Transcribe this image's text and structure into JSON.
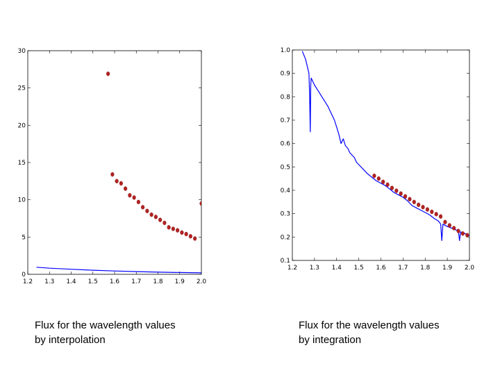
{
  "captions": {
    "left_line1": "Flux for the wavelength values",
    "left_line2": "by interpolation",
    "right_line1": "Flux for the wavelength values",
    "right_line2": "by integration"
  },
  "colors": {
    "point": "#b22222",
    "line": "#0000ff",
    "frame": "#000000",
    "background": "#ffffff"
  },
  "chart_data": [
    {
      "type": "scatter",
      "title": "",
      "xlabel": "",
      "ylabel": "",
      "xlim": [
        1.2,
        2.0
      ],
      "ylim": [
        0,
        30
      ],
      "grid": false,
      "xticks": [
        1.2,
        1.3,
        1.4,
        1.5,
        1.6,
        1.7,
        1.8,
        1.9,
        2.0
      ],
      "yticks": [
        0,
        5,
        10,
        15,
        20,
        25,
        30
      ],
      "series": [
        {
          "kind": "points",
          "x": [
            1.57,
            1.59,
            1.61,
            1.63,
            1.65,
            1.67,
            1.69,
            1.71,
            1.73,
            1.75,
            1.77,
            1.79,
            1.81,
            1.83,
            1.85,
            1.87,
            1.89,
            1.91,
            1.93,
            1.95,
            1.97,
            2.0
          ],
          "y": [
            26.9,
            13.4,
            12.5,
            12.2,
            11.5,
            10.6,
            10.3,
            9.7,
            9.0,
            8.5,
            8.0,
            7.7,
            7.3,
            6.9,
            6.3,
            6.1,
            5.9,
            5.6,
            5.4,
            5.1,
            4.8,
            9.5
          ]
        },
        {
          "kind": "line",
          "x": [
            1.24,
            1.3,
            1.4,
            1.5,
            1.6,
            1.7,
            1.8,
            1.9,
            2.0
          ],
          "y": [
            0.95,
            0.82,
            0.68,
            0.55,
            0.45,
            0.36,
            0.29,
            0.24,
            0.2
          ]
        }
      ]
    },
    {
      "type": "scatter",
      "title": "",
      "xlabel": "",
      "ylabel": "",
      "xlim": [
        1.2,
        2.0
      ],
      "ylim": [
        0.1,
        1.0
      ],
      "grid": false,
      "xticks": [
        1.2,
        1.3,
        1.4,
        1.5,
        1.6,
        1.7,
        1.8,
        1.9,
        2.0
      ],
      "yticks": [
        0.1,
        0.2,
        0.3,
        0.4,
        0.5,
        0.6,
        0.7,
        0.8,
        0.9,
        1.0
      ],
      "series": [
        {
          "kind": "line",
          "x": [
            1.245,
            1.26,
            1.275,
            1.278,
            1.281,
            1.283,
            1.285,
            1.29,
            1.3,
            1.32,
            1.34,
            1.36,
            1.38,
            1.39,
            1.4,
            1.41,
            1.42,
            1.43,
            1.44,
            1.45,
            1.46,
            1.47,
            1.48,
            1.49,
            1.5,
            1.52,
            1.54,
            1.56,
            1.58,
            1.6,
            1.62,
            1.64,
            1.66,
            1.68,
            1.7,
            1.72,
            1.74,
            1.76,
            1.78,
            1.8,
            1.82,
            1.84,
            1.86,
            1.87,
            1.875,
            1.88,
            1.9,
            1.92,
            1.94,
            1.95,
            1.955,
            1.96,
            1.98,
            2.0
          ],
          "y": [
            0.995,
            0.96,
            0.9,
            0.8,
            0.65,
            0.85,
            0.88,
            0.87,
            0.85,
            0.82,
            0.79,
            0.76,
            0.72,
            0.7,
            0.67,
            0.64,
            0.6,
            0.62,
            0.59,
            0.58,
            0.56,
            0.55,
            0.54,
            0.52,
            0.51,
            0.49,
            0.47,
            0.455,
            0.44,
            0.43,
            0.42,
            0.405,
            0.39,
            0.38,
            0.37,
            0.355,
            0.335,
            0.325,
            0.315,
            0.305,
            0.295,
            0.28,
            0.268,
            0.255,
            0.185,
            0.255,
            0.245,
            0.238,
            0.23,
            0.225,
            0.185,
            0.222,
            0.215,
            0.205
          ]
        },
        {
          "kind": "points",
          "x": [
            1.57,
            1.59,
            1.61,
            1.63,
            1.65,
            1.67,
            1.69,
            1.71,
            1.73,
            1.75,
            1.77,
            1.79,
            1.81,
            1.83,
            1.85,
            1.87,
            1.89,
            1.91,
            1.93,
            1.95,
            1.97,
            1.99
          ],
          "y": [
            0.462,
            0.45,
            0.436,
            0.424,
            0.41,
            0.398,
            0.386,
            0.374,
            0.362,
            0.35,
            0.338,
            0.328,
            0.318,
            0.308,
            0.298,
            0.288,
            0.264,
            0.25,
            0.238,
            0.226,
            0.215,
            0.208
          ]
        }
      ]
    }
  ]
}
